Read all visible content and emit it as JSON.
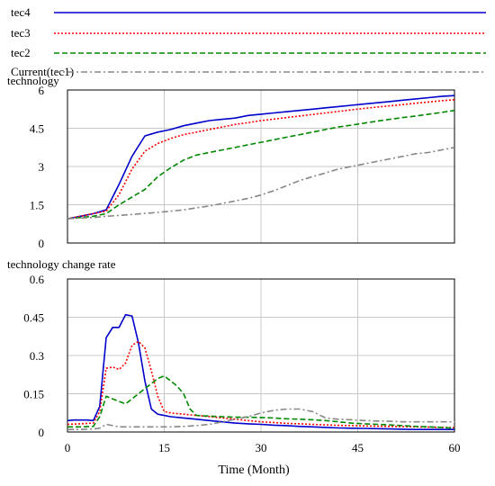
{
  "legend": [
    {
      "name": "tec4",
      "color": "#0000cc",
      "dash": "solid"
    },
    {
      "name": "tec3",
      "color": "#ff0000",
      "dash": "dotted"
    },
    {
      "name": "tec2",
      "color": "#008800",
      "dash": "dashed"
    },
    {
      "name": "Current(tec1)",
      "color": "#888888",
      "dash": "dashdot"
    }
  ],
  "xlabel": "Time (Month)",
  "chart_data": [
    {
      "type": "line",
      "title": "technology",
      "xlim": [
        0,
        60
      ],
      "ylim": [
        0,
        6
      ],
      "xticks": [
        "0",
        "15",
        "30",
        "45",
        "60"
      ],
      "xtick_values": [
        0,
        15,
        30,
        45,
        60
      ],
      "yticks": [
        "0",
        "1.5",
        "3",
        "4.5",
        "6"
      ],
      "ytick_values": [
        0,
        1.5,
        3,
        4.5,
        6
      ],
      "grid": true,
      "x": [
        0,
        2,
        4,
        6,
        8,
        10,
        12,
        14,
        16,
        18,
        20,
        22,
        24,
        26,
        28,
        30,
        32,
        34,
        36,
        38,
        40,
        42,
        44,
        46,
        48,
        50,
        52,
        54,
        56,
        58,
        60
      ],
      "series": [
        {
          "name": "tec4",
          "color": "#0000cc",
          "dash": "solid",
          "values": [
            0.95,
            1.05,
            1.15,
            1.3,
            2.3,
            3.4,
            4.2,
            4.35,
            4.45,
            4.6,
            4.7,
            4.8,
            4.85,
            4.9,
            5.0,
            5.05,
            5.1,
            5.15,
            5.2,
            5.25,
            5.3,
            5.35,
            5.4,
            5.45,
            5.5,
            5.55,
            5.6,
            5.65,
            5.7,
            5.75,
            5.78
          ]
        },
        {
          "name": "tec3",
          "color": "#ff0000",
          "dash": "dotted",
          "values": [
            0.95,
            1.05,
            1.15,
            1.25,
            1.9,
            2.9,
            3.6,
            3.9,
            4.1,
            4.25,
            4.35,
            4.45,
            4.55,
            4.65,
            4.72,
            4.8,
            4.86,
            4.92,
            4.98,
            5.04,
            5.1,
            5.16,
            5.22,
            5.28,
            5.33,
            5.38,
            5.43,
            5.48,
            5.53,
            5.58,
            5.62
          ]
        },
        {
          "name": "tec2",
          "color": "#008800",
          "dash": "dashed",
          "values": [
            0.95,
            1.0,
            1.05,
            1.15,
            1.5,
            1.8,
            2.1,
            2.6,
            2.95,
            3.25,
            3.45,
            3.55,
            3.65,
            3.75,
            3.85,
            3.95,
            4.05,
            4.15,
            4.25,
            4.35,
            4.45,
            4.55,
            4.62,
            4.7,
            4.78,
            4.85,
            4.92,
            4.98,
            5.05,
            5.12,
            5.2
          ]
        },
        {
          "name": "Current(tec1)",
          "color": "#888888",
          "dash": "dashdot",
          "values": [
            0.95,
            0.98,
            1.0,
            1.05,
            1.08,
            1.12,
            1.16,
            1.2,
            1.25,
            1.3,
            1.38,
            1.45,
            1.55,
            1.65,
            1.75,
            1.88,
            2.05,
            2.25,
            2.45,
            2.6,
            2.75,
            2.9,
            3.0,
            3.1,
            3.2,
            3.3,
            3.4,
            3.5,
            3.55,
            3.65,
            3.75
          ]
        }
      ]
    },
    {
      "type": "line",
      "title": "technology change rate",
      "xlim": [
        0,
        60
      ],
      "ylim": [
        0,
        0.6
      ],
      "xticks": [
        "0",
        "15",
        "30",
        "45",
        "60"
      ],
      "xtick_values": [
        0,
        15,
        30,
        45,
        60
      ],
      "yticks": [
        "0",
        "0.15",
        "0.3",
        "0.45",
        "0.6"
      ],
      "ytick_values": [
        0,
        0.15,
        0.3,
        0.45,
        0.6
      ],
      "grid": true,
      "series": [
        {
          "name": "tec4",
          "color": "#0000cc",
          "dash": "solid",
          "x": [
            0,
            1,
            2,
            3,
            4,
            5,
            6,
            7,
            8,
            9,
            10,
            11,
            12,
            13,
            14,
            16,
            18,
            20,
            22,
            24,
            26,
            28,
            30,
            32,
            34,
            36,
            38,
            40,
            42,
            44,
            46,
            48,
            50,
            52,
            54,
            56,
            58,
            60
          ],
          "values": [
            0.045,
            0.047,
            0.047,
            0.047,
            0.045,
            0.1,
            0.37,
            0.41,
            0.41,
            0.46,
            0.455,
            0.35,
            0.2,
            0.09,
            0.07,
            0.06,
            0.055,
            0.05,
            0.045,
            0.04,
            0.035,
            0.032,
            0.03,
            0.027,
            0.025,
            0.022,
            0.02,
            0.018,
            0.016,
            0.015,
            0.014,
            0.013,
            0.012,
            0.011,
            0.01,
            0.01,
            0.01,
            0.01
          ]
        },
        {
          "name": "tec3",
          "color": "#ff0000",
          "dash": "dotted",
          "x": [
            0,
            2,
            4,
            5,
            6,
            7,
            8,
            9,
            10,
            11,
            12,
            13,
            14,
            15,
            16,
            18,
            20,
            22,
            24,
            26,
            28,
            30,
            32,
            34,
            36,
            38,
            40,
            42,
            44,
            46,
            48,
            50,
            52,
            54,
            56,
            58,
            60
          ],
          "values": [
            0.03,
            0.032,
            0.035,
            0.08,
            0.25,
            0.255,
            0.245,
            0.27,
            0.34,
            0.355,
            0.33,
            0.24,
            0.14,
            0.08,
            0.075,
            0.07,
            0.065,
            0.06,
            0.055,
            0.05,
            0.045,
            0.04,
            0.037,
            0.034,
            0.032,
            0.03,
            0.028,
            0.026,
            0.025,
            0.024,
            0.023,
            0.022,
            0.021,
            0.02,
            0.019,
            0.018,
            0.017
          ]
        },
        {
          "name": "tec2",
          "color": "#008800",
          "dash": "dashed",
          "x": [
            0,
            2,
            4,
            5,
            6,
            7,
            8,
            9,
            10,
            11,
            12,
            13,
            14,
            15,
            16,
            17,
            18,
            19,
            20,
            22,
            24,
            26,
            28,
            30,
            32,
            34,
            36,
            38,
            40,
            42,
            44,
            46,
            48,
            50,
            52,
            54,
            56,
            58,
            60
          ],
          "values": [
            0.02,
            0.02,
            0.022,
            0.06,
            0.14,
            0.13,
            0.12,
            0.11,
            0.13,
            0.15,
            0.17,
            0.19,
            0.21,
            0.22,
            0.2,
            0.18,
            0.15,
            0.09,
            0.065,
            0.062,
            0.06,
            0.058,
            0.058,
            0.057,
            0.055,
            0.052,
            0.05,
            0.048,
            0.045,
            0.04,
            0.035,
            0.032,
            0.03,
            0.028,
            0.025,
            0.022,
            0.02,
            0.018,
            0.015
          ]
        },
        {
          "name": "Current(tec1)",
          "color": "#888888",
          "dash": "dashdot",
          "x": [
            0,
            2,
            4,
            5,
            6,
            7,
            8,
            10,
            12,
            14,
            16,
            18,
            20,
            22,
            24,
            26,
            28,
            30,
            32,
            34,
            36,
            38,
            40,
            42,
            44,
            46,
            48,
            50,
            52,
            54,
            56,
            58,
            60
          ],
          "values": [
            0.01,
            0.01,
            0.012,
            0.015,
            0.03,
            0.025,
            0.02,
            0.02,
            0.02,
            0.02,
            0.02,
            0.022,
            0.025,
            0.03,
            0.04,
            0.05,
            0.06,
            0.075,
            0.085,
            0.09,
            0.09,
            0.08,
            0.055,
            0.05,
            0.048,
            0.045,
            0.043,
            0.042,
            0.04,
            0.04,
            0.04,
            0.04,
            0.04
          ]
        }
      ]
    }
  ]
}
